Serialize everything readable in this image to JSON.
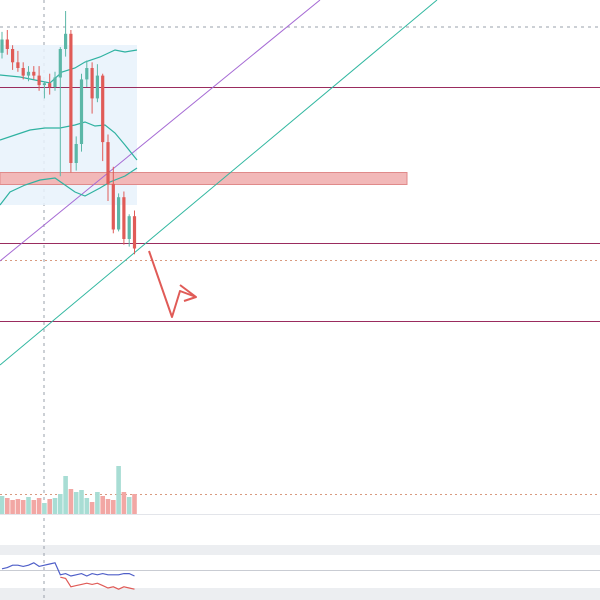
{
  "chart_data": {
    "type": "candlestick",
    "series": [
      {
        "name": "",
        "values": [
          {
            "o": 68,
            "h": 79,
            "l": 65,
            "c": 75
          },
          {
            "o": 75,
            "h": 80,
            "l": 67,
            "c": 70
          },
          {
            "o": 70,
            "h": 72,
            "l": 59,
            "c": 63
          },
          {
            "o": 63,
            "h": 69,
            "l": 58,
            "c": 60
          },
          {
            "o": 60,
            "h": 63,
            "l": 54,
            "c": 56
          },
          {
            "o": 56,
            "h": 61,
            "l": 53,
            "c": 58
          },
          {
            "o": 58,
            "h": 61,
            "l": 54,
            "c": 56
          },
          {
            "o": 56,
            "h": 61,
            "l": 48,
            "c": 51
          },
          {
            "o": 51,
            "h": 53,
            "l": 44,
            "c": 52
          },
          {
            "o": 52,
            "h": 57,
            "l": 46,
            "c": 50
          },
          {
            "o": 50,
            "h": 58,
            "l": 48,
            "c": 55
          },
          {
            "o": 55,
            "h": 71,
            "l": 3,
            "c": 70
          },
          {
            "o": 70,
            "h": 90,
            "l": 66,
            "c": 78
          },
          {
            "o": 78,
            "h": 80,
            "l": 5,
            "c": 10
          },
          {
            "o": 10,
            "h": 24,
            "l": 6,
            "c": 20
          },
          {
            "o": 20,
            "h": 57,
            "l": 16,
            "c": 54
          },
          {
            "o": 54,
            "h": 64,
            "l": 50,
            "c": 60
          },
          {
            "o": 60,
            "h": 63,
            "l": 36,
            "c": 44
          },
          {
            "o": 44,
            "h": 62,
            "l": 42,
            "c": 56
          },
          {
            "o": 56,
            "h": 57,
            "l": 11,
            "c": 21
          },
          {
            "o": 21,
            "h": 25,
            "l": -10,
            "c": -1
          },
          {
            "o": -1,
            "h": 8,
            "l": -27,
            "c": -25
          },
          {
            "o": -25,
            "h": -6,
            "l": -26,
            "c": -8
          },
          {
            "o": -8,
            "h": -5,
            "l": -33,
            "c": -30
          },
          {
            "o": -30,
            "h": -17,
            "l": -34,
            "c": -18
          },
          {
            "o": -18,
            "h": -15,
            "l": -38,
            "c": -35
          }
        ]
      }
    ],
    "volume": [
      18,
      16,
      14,
      15,
      14,
      17,
      14,
      16,
      11,
      15,
      16,
      20,
      38,
      25,
      22,
      24,
      16,
      12,
      22,
      18,
      15,
      14,
      48,
      22,
      17,
      20
    ],
    "indicator_lines": {
      "blue": [
        1,
        2,
        4,
        4,
        3,
        4,
        6,
        3,
        4,
        5,
        6,
        -4,
        -3,
        -5,
        -4,
        -3,
        -5,
        -3,
        -4,
        -3,
        -4,
        -4,
        -4,
        -3,
        -3,
        -5
      ],
      "red": [
        null,
        null,
        null,
        null,
        null,
        null,
        null,
        null,
        null,
        null,
        null,
        -6,
        -7,
        -14,
        -13,
        -12,
        -11,
        -12,
        -11,
        -13,
        -15,
        -14,
        -16,
        -14,
        -15,
        -16
      ]
    },
    "colors": {
      "up": "#5bb7a7",
      "down": "#e05b57",
      "support_resistance": "#9a2c5e",
      "purple_channel": "#a56ad4",
      "teal_channel": "#31b7a0",
      "zone": "#f2b8b8",
      "arrow": "#e05b57",
      "bollinger": "#2fb2a1",
      "dotted": "#d99a7f",
      "ind_blue": "#4e5ec8",
      "ind_red": "#e05b57"
    }
  }
}
